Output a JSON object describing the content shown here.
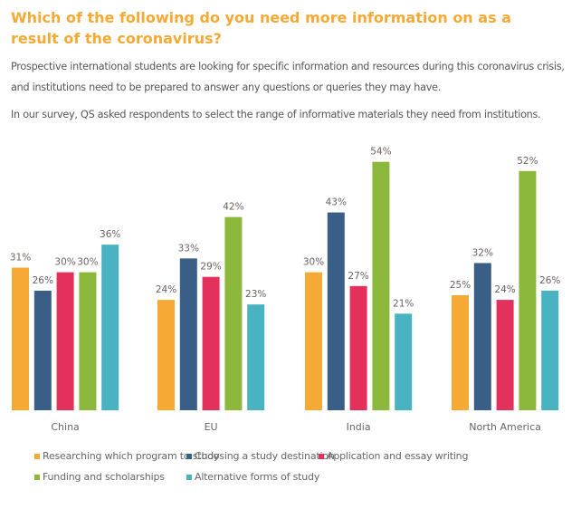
{
  "heading": "Which of the following do you need more information on as a result of the coronavirus?",
  "paragraphs": [
    "Prospective international students are looking for specific information and resources during this coronavirus crisis, and institutions need to be prepared to answer any questions or queries they may have.",
    "In our survey, QS asked respondents to select the range of informative materials they need from institutions."
  ],
  "chart_data": {
    "type": "bar",
    "title": "",
    "xlabel": "",
    "ylabel": "",
    "ylim": [
      0,
      55
    ],
    "grid": false,
    "legend_position": "bottom",
    "value_format": "percent",
    "categories": [
      "China",
      "EU",
      "India",
      "North America"
    ],
    "series": [
      {
        "name": "Researching which program to study",
        "color": "#f7a935",
        "values": [
          31,
          24,
          30,
          25
        ]
      },
      {
        "name": "Choosing a study destination",
        "color": "#3a5f87",
        "values": [
          26,
          33,
          43,
          32
        ]
      },
      {
        "name": "Application and essay writing",
        "color": "#e4315b",
        "values": [
          30,
          29,
          27,
          24
        ]
      },
      {
        "name": "Funding and scholarships",
        "color": "#8cb93c",
        "values": [
          30,
          42,
          54,
          52
        ]
      },
      {
        "name": "Alternative forms of study",
        "color": "#4ab3c2",
        "values": [
          36,
          23,
          21,
          26
        ]
      }
    ]
  }
}
